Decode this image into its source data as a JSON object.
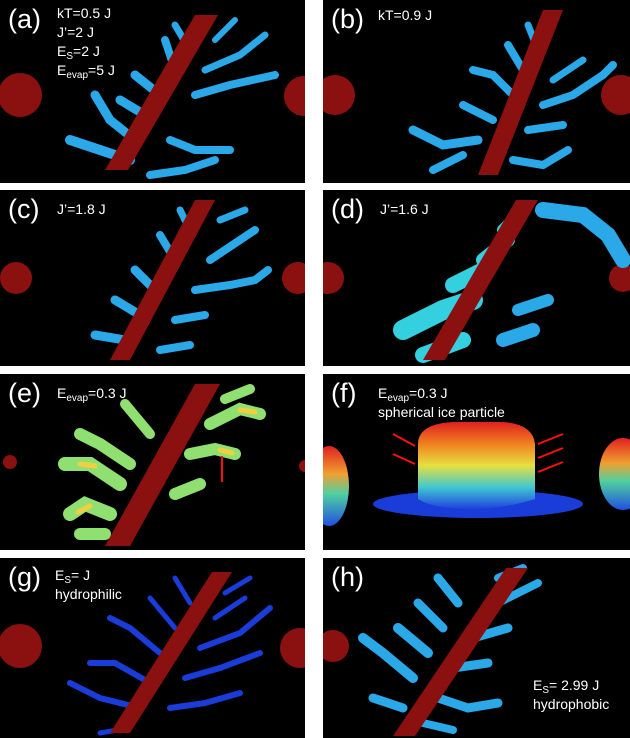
{
  "panels": [
    {
      "label": "(a)",
      "lines": [
        {
          "pre": "kT=0.5 J"
        },
        {
          "pre": "J’=2 J"
        },
        {
          "pre": "E",
          "sub": "S",
          "post": "=2 J"
        },
        {
          "pre": "E",
          "sub": "evap",
          "post": "=5 J"
        }
      ]
    },
    {
      "label": "(b)",
      "lines": [
        {
          "pre": "kT=0.9 J"
        }
      ]
    },
    {
      "label": "(c)",
      "lines": [
        {
          "pre": "J’=1.8 J"
        }
      ]
    },
    {
      "label": "(d)",
      "lines": [
        {
          "pre": "J’=1.6 J"
        }
      ]
    },
    {
      "label": "(e)",
      "lines": [
        {
          "pre": "E",
          "sub": "evap",
          "post": "=0.3 J"
        }
      ]
    },
    {
      "label": "(f)",
      "lines": [
        {
          "pre": "E",
          "sub": "evap",
          "post": "=0.3 J"
        },
        {
          "pre": "spherical ice particle"
        }
      ]
    },
    {
      "label": "(g)",
      "lines": [
        {
          "pre": "E",
          "sub": "S",
          "post": "= J"
        },
        {
          "pre": "hydrophilic"
        }
      ]
    },
    {
      "label": "(h)",
      "lines": [
        {
          "pre": "E",
          "sub": "S",
          "post": "= 2.99 J"
        },
        {
          "pre": "hydrophobic"
        }
      ]
    }
  ],
  "colors": {
    "background": "#000000",
    "fiber": "#8b1010",
    "ice_light": "#2aa8e8",
    "ice_cyan": "#35d0e0",
    "ice_blue": "#1a3cd8",
    "arrow": "#ff1010"
  }
}
